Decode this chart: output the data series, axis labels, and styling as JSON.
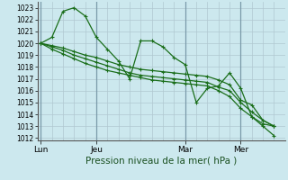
{
  "bg_color": "#cce8ee",
  "grid_color": "#b0c8d0",
  "line_color": "#1a6e1a",
  "xlabel": "Pression niveau de la mer( hPa )",
  "xlabel_fontsize": 7.5,
  "ytick_fontsize": 5.5,
  "xtick_fontsize": 6.5,
  "yticks": [
    1012,
    1013,
    1014,
    1015,
    1016,
    1017,
    1018,
    1019,
    1020,
    1021,
    1022,
    1023
  ],
  "ylim": [
    1011.8,
    1023.5
  ],
  "xtick_labels": [
    "Lun",
    "Jeu",
    "Mar",
    "Mer"
  ],
  "xtick_positions": [
    0,
    5,
    13,
    18
  ],
  "xlim": [
    -0.3,
    22
  ],
  "vline_positions": [
    0,
    5,
    13,
    18
  ],
  "series": [
    [
      1020.0,
      1020.5,
      1022.7,
      1023.0,
      1022.3,
      1020.5,
      1019.5,
      1018.5,
      1017.0,
      1020.2,
      1020.2,
      1019.7,
      1018.8,
      1018.2,
      1015.0,
      1016.2,
      1016.4,
      1017.5,
      1016.2,
      1013.8,
      1013.0,
      1012.2
    ],
    [
      1020.0,
      1019.8,
      1019.6,
      1019.3,
      1019.0,
      1018.8,
      1018.5,
      1018.2,
      1018.0,
      1017.8,
      1017.7,
      1017.6,
      1017.5,
      1017.4,
      1017.3,
      1017.2,
      1016.9,
      1016.5,
      1015.2,
      1014.8,
      1013.5,
      1013.0
    ],
    [
      1020.0,
      1019.7,
      1019.4,
      1019.0,
      1018.7,
      1018.4,
      1018.1,
      1017.8,
      1017.5,
      1017.3,
      1017.2,
      1017.1,
      1017.0,
      1016.9,
      1016.8,
      1016.7,
      1016.3,
      1016.0,
      1015.0,
      1014.2,
      1013.5,
      1013.0
    ],
    [
      1020.0,
      1019.5,
      1019.1,
      1018.7,
      1018.3,
      1018.0,
      1017.7,
      1017.5,
      1017.3,
      1017.1,
      1016.9,
      1016.8,
      1016.7,
      1016.6,
      1016.5,
      1016.4,
      1016.0,
      1015.5,
      1014.5,
      1013.8,
      1013.2,
      1013.0
    ]
  ]
}
